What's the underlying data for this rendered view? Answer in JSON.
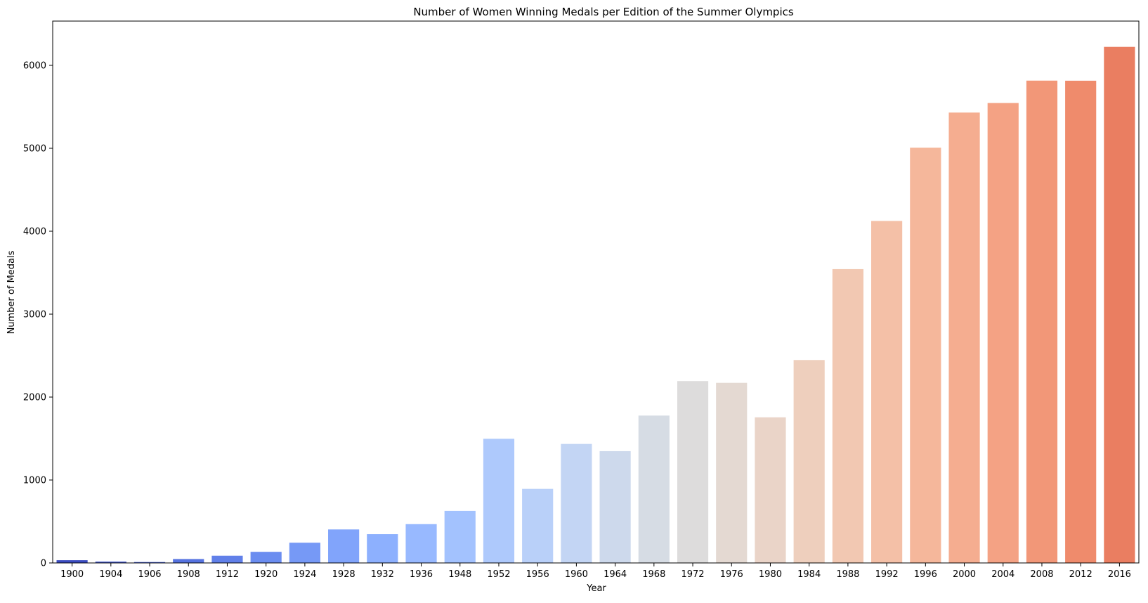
{
  "chart_data": {
    "type": "bar",
    "title": "Number of Women Winning Medals per Edition of the Summer Olympics",
    "xlabel": "Year",
    "ylabel": "Number of Medals",
    "categories": [
      "1900",
      "1904",
      "1906",
      "1908",
      "1912",
      "1920",
      "1924",
      "1928",
      "1932",
      "1936",
      "1948",
      "1952",
      "1956",
      "1960",
      "1964",
      "1968",
      "1972",
      "1976",
      "1980",
      "1984",
      "1988",
      "1992",
      "1996",
      "2000",
      "2004",
      "2008",
      "2012",
      "2016"
    ],
    "values": [
      33,
      16,
      11,
      47,
      87,
      134,
      244,
      404,
      347,
      468,
      628,
      1497,
      893,
      1435,
      1348,
      1777,
      2193,
      2172,
      1756,
      2447,
      3543,
      4124,
      5008,
      5431,
      5546,
      5816,
      5815,
      6223
    ],
    "ylim": [
      0,
      6534
    ],
    "yticks": [
      0,
      1000,
      2000,
      3000,
      4000,
      5000,
      6000
    ],
    "colors": [
      "#3b4cc0",
      "#4358cb",
      "#4c66d6",
      "#5673e0",
      "#6180e9",
      "#6b8df0",
      "#7699f6",
      "#81a4fb",
      "#8db0fe",
      "#98b9ff",
      "#a3c2fe",
      "#aec9fc",
      "#b9d0f9",
      "#c3d5f4",
      "#cdd9ec",
      "#d6dce4",
      "#dddcdc",
      "#e4d9d2",
      "#ead4c8",
      "#eecfbd",
      "#f2c8b2",
      "#f4c0a7",
      "#f5b79b",
      "#f5ad90",
      "#f4a284",
      "#f29778",
      "#ef8b6c",
      "#ea7e61"
    ],
    "grid": false,
    "legend": "none"
  }
}
